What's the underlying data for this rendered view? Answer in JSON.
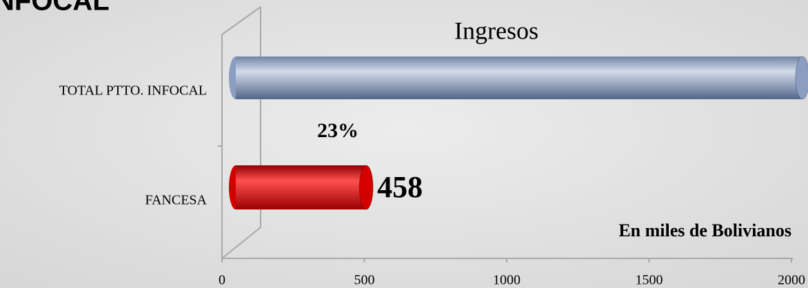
{
  "heading": "NFOCAL",
  "chart_data": {
    "type": "bar",
    "orientation": "horizontal",
    "title": "Ingresos",
    "categories": [
      "TOTAL PTTO. INFOCAL",
      "FANCESA"
    ],
    "series": [
      {
        "name": "Ingresos",
        "colors": [
          "#8b9dc0",
          "#d40000"
        ],
        "values": [
          1990,
          458
        ],
        "value_labels": [
          null,
          "458"
        ]
      }
    ],
    "annotations": [
      "23%",
      "En miles de Bolivianos"
    ],
    "xlim": [
      0,
      2000
    ],
    "xticks": [
      0,
      500,
      1000,
      1500,
      2000
    ],
    "grid": false
  }
}
